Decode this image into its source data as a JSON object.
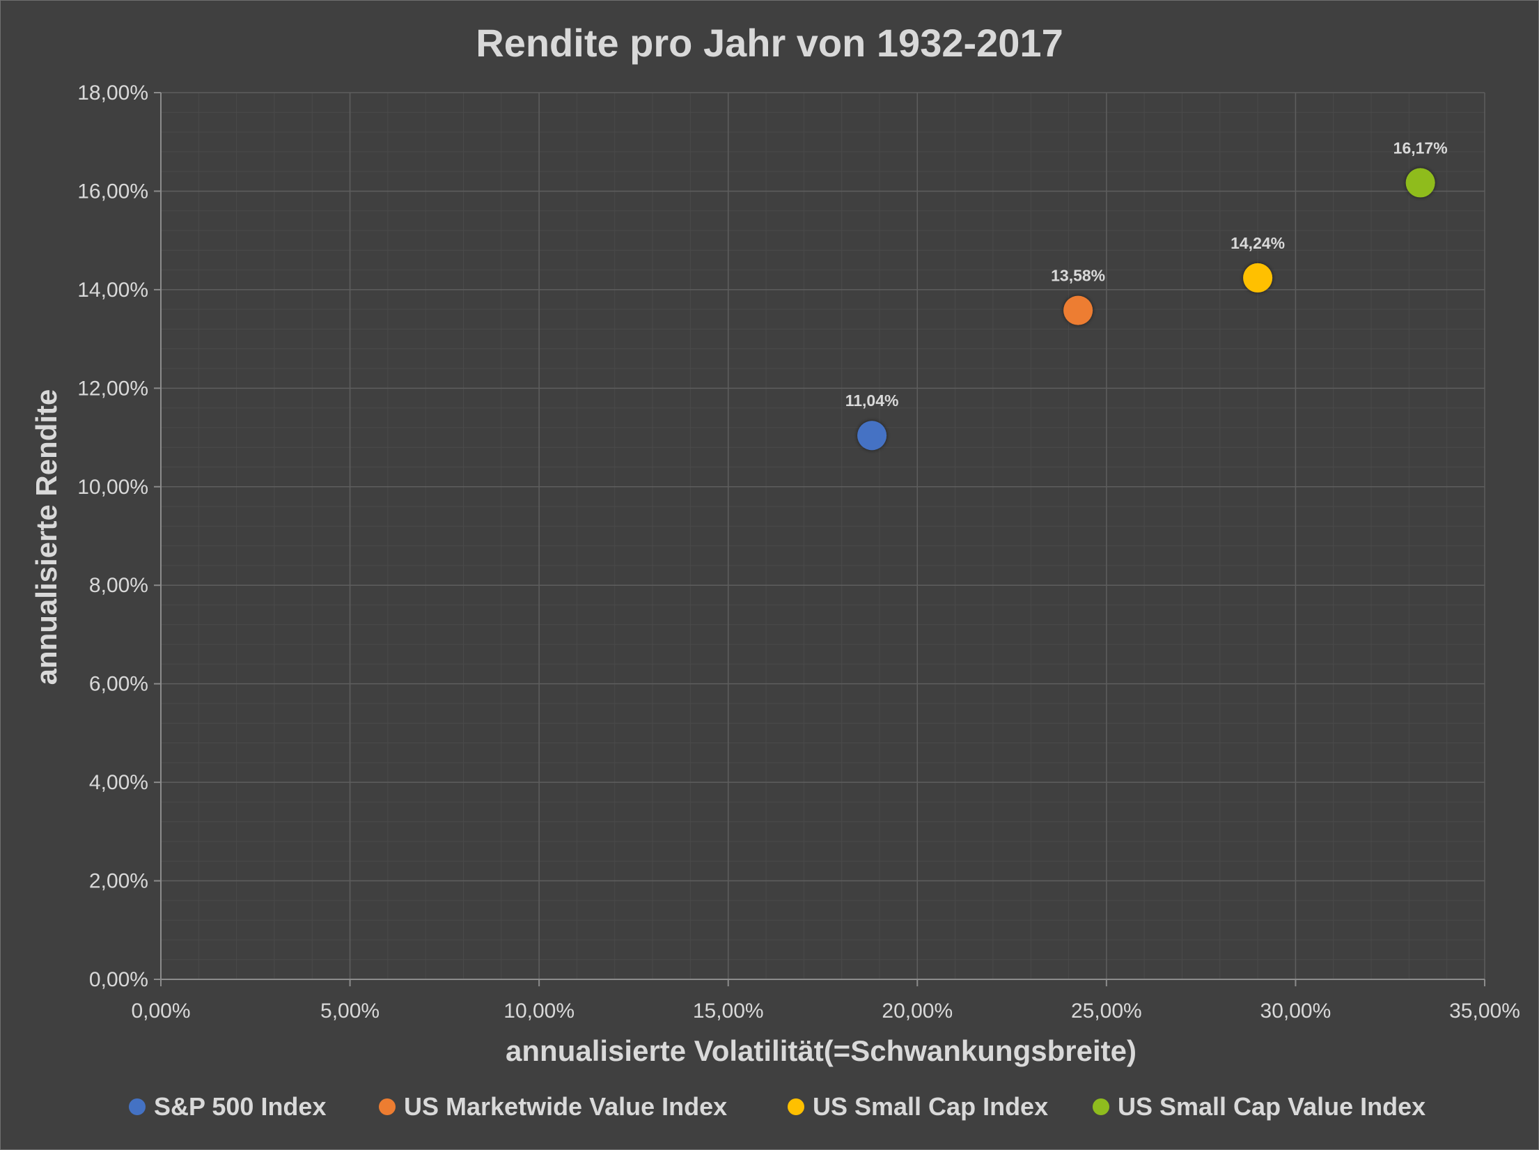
{
  "chart_data": {
    "type": "scatter",
    "title": "Rendite pro Jahr von 1932-2017",
    "xlabel": "annualisierte Volatilität(=Schwankungsbreite)",
    "ylabel": "annualisierte Rendite",
    "xlim": [
      0,
      35
    ],
    "ylim": [
      0,
      18
    ],
    "x_ticks": [
      0,
      5,
      10,
      15,
      20,
      25,
      30,
      35
    ],
    "y_ticks": [
      0,
      2,
      4,
      6,
      8,
      10,
      12,
      14,
      16,
      18
    ],
    "x_tick_labels": [
      "0,00%",
      "5,00%",
      "10,00%",
      "15,00%",
      "20,00%",
      "25,00%",
      "30,00%",
      "35,00%"
    ],
    "y_tick_labels": [
      "0,00%",
      "2,00%",
      "4,00%",
      "6,00%",
      "8,00%",
      "10,00%",
      "12,00%",
      "14,00%",
      "16,00%",
      "18,00%"
    ],
    "grid": "major and minor",
    "legend_position": "bottom",
    "series": [
      {
        "name": "S&P 500 Index",
        "color": "#4472c4",
        "x": 18.8,
        "y": 11.04,
        "label": "11,04%"
      },
      {
        "name": "US Marketwide Value Index",
        "color": "#ed7d31",
        "x": 24.25,
        "y": 13.58,
        "label": "13,58%"
      },
      {
        "name": "US Small Cap Index",
        "color": "#ffc000",
        "x": 29.0,
        "y": 14.24,
        "label": "14,24%"
      },
      {
        "name": "US Small Cap Value Index",
        "color": "#8fbc1e",
        "x": 33.3,
        "y": 16.17,
        "label": "16,17%"
      }
    ]
  }
}
